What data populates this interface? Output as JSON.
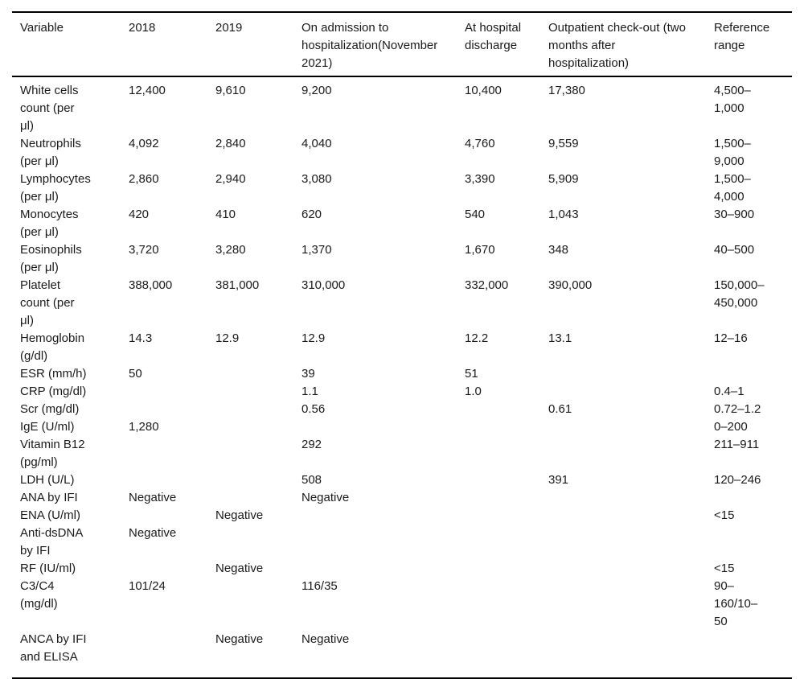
{
  "page": {
    "background_color": "#ffffff",
    "text_color": "#1a1a1a",
    "rule_color": "#000000"
  },
  "table": {
    "columns": [
      {
        "label": "Variable"
      },
      {
        "label": "2018"
      },
      {
        "label": "2019"
      },
      {
        "label": "On admission to\nhospitalization(November\n2021)"
      },
      {
        "label": "At hospital\ndischarge"
      },
      {
        "label": "Outpatient check-out (two\nmonths after\nhospitalization)"
      },
      {
        "label": "Reference\nrange"
      }
    ],
    "rows": [
      {
        "cells": [
          "White cells\ncount (per\nμl)",
          "12,400",
          "9,610",
          "9,200",
          "10,400",
          "17,380",
          "4,500–\n1,000"
        ]
      },
      {
        "cells": [
          "Neutrophils\n(per μl)",
          "4,092",
          "2,840",
          "4,040",
          "4,760",
          "9,559",
          "1,500–\n9,000"
        ]
      },
      {
        "cells": [
          "Lymphocytes\n(per μl)",
          "2,860",
          "2,940",
          "3,080",
          "3,390",
          "5,909",
          "1,500–\n4,000"
        ]
      },
      {
        "cells": [
          "Monocytes\n(per μl)",
          "420",
          "410",
          "620",
          "540",
          "1,043",
          "30–900"
        ]
      },
      {
        "cells": [
          "Eosinophils\n(per μl)",
          "3,720",
          "3,280",
          "1,370",
          "1,670",
          "348",
          "40–500"
        ]
      },
      {
        "cells": [
          "Platelet\ncount (per\nμl)",
          "388,000",
          "381,000",
          "310,000",
          "332,000",
          "390,000",
          "150,000–\n450,000"
        ]
      },
      {
        "cells": [
          "Hemoglobin\n(g/dl)",
          "14.3",
          "12.9",
          "12.9",
          "12.2",
          "13.1",
          "12–16"
        ]
      },
      {
        "cells": [
          "ESR (mm/h)",
          "50",
          "",
          "39",
          "51",
          "",
          ""
        ]
      },
      {
        "cells": [
          "CRP (mg/dl)",
          "",
          "",
          "1.1",
          "1.0",
          "",
          "0.4–1"
        ]
      },
      {
        "cells": [
          "Scr (mg/dl)",
          "",
          "",
          "0.56",
          "",
          "0.61",
          "0.72–1.2"
        ]
      },
      {
        "cells": [
          "IgE (U/ml)",
          "1,280",
          "",
          "",
          "",
          "",
          "0–200"
        ]
      },
      {
        "cells": [
          "Vitamin B12\n(pg/ml)",
          "",
          "",
          "292",
          "",
          "",
          "211–911"
        ]
      },
      {
        "cells": [
          "LDH (U/L)",
          "",
          "",
          "508",
          "",
          "391",
          "120–246"
        ]
      },
      {
        "cells": [
          "ANA by IFI",
          "Negative",
          "",
          "Negative",
          "",
          "",
          ""
        ]
      },
      {
        "cells": [
          "ENA (U/ml)",
          "",
          "Negative",
          "",
          "",
          "",
          "˂15"
        ]
      },
      {
        "cells": [
          "Anti-dsDNA\nby IFI",
          "Negative",
          "",
          "",
          "",
          "",
          ""
        ]
      },
      {
        "cells": [
          "RF (IU/ml)",
          "",
          "Negative",
          "",
          "",
          "",
          "˂15"
        ]
      },
      {
        "cells": [
          "C3/C4\n(mg/dl)",
          "101/24",
          "",
          "116/35",
          "",
          "",
          "90–\n160/10–\n50"
        ]
      },
      {
        "cells": [
          "ANCA by IFI\nand ELISA",
          "",
          "Negative",
          "Negative",
          "",
          "",
          ""
        ]
      }
    ]
  }
}
